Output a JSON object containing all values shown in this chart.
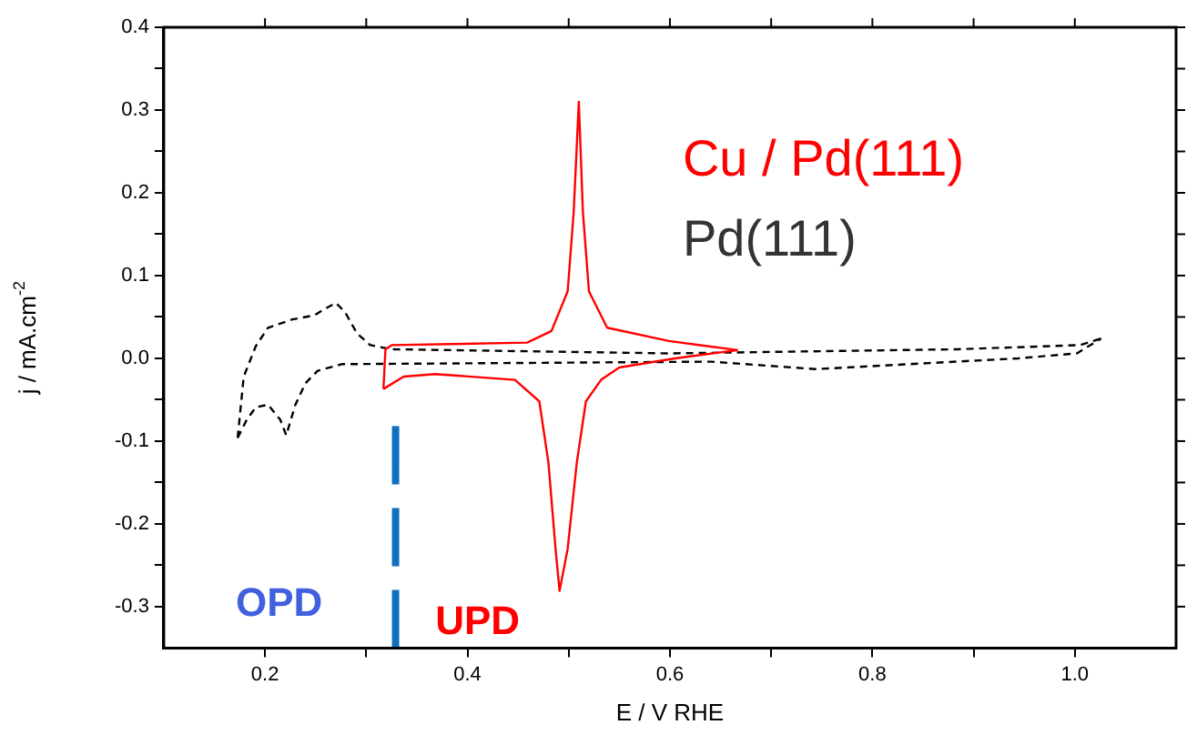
{
  "chart_data": {
    "type": "line",
    "xlabel": "E / V RHE",
    "ylabel": "j / mA.cm$^{-2}$",
    "xlim": [
      0.1,
      1.1
    ],
    "ylim": [
      -0.35,
      0.4
    ],
    "xticks": [
      {
        "value": 0.2,
        "label": "0.2"
      },
      {
        "value": 0.3,
        "label": null
      },
      {
        "value": 0.4,
        "label": "0.4"
      },
      {
        "value": 0.5,
        "label": null
      },
      {
        "value": 0.6,
        "label": "0.6"
      },
      {
        "value": 0.7,
        "label": null
      },
      {
        "value": 0.8,
        "label": "0.8"
      },
      {
        "value": 0.9,
        "label": null
      },
      {
        "value": 1.0,
        "label": "1.0"
      }
    ],
    "yticks": [
      {
        "value": -0.3,
        "label": "-0.3"
      },
      {
        "value": -0.25,
        "label": null
      },
      {
        "value": -0.2,
        "label": "-0.2"
      },
      {
        "value": -0.15,
        "label": null
      },
      {
        "value": -0.1,
        "label": "-0.1"
      },
      {
        "value": -0.05,
        "label": null
      },
      {
        "value": 0.0,
        "label": "0.0"
      },
      {
        "value": 0.05,
        "label": null
      },
      {
        "value": 0.1,
        "label": "0.1"
      },
      {
        "value": 0.15,
        "label": null
      },
      {
        "value": 0.2,
        "label": "0.2"
      },
      {
        "value": 0.25,
        "label": null
      },
      {
        "value": 0.3,
        "label": "0.3"
      },
      {
        "value": 0.35,
        "label": null
      },
      {
        "value": 0.4,
        "label": "0.4"
      }
    ],
    "grid": false,
    "legend": "top right",
    "marker": "none",
    "series": [
      {
        "name": "Cu / Pd(111)",
        "color": "#ff0000",
        "line_style": "solid",
        "x": [
          0.317,
          0.319,
          0.325,
          0.459,
          0.483,
          0.499,
          0.505,
          0.51,
          0.514,
          0.52,
          0.538,
          0.599,
          0.667
        ],
        "values": [
          -0.037,
          0.011,
          0.016,
          0.019,
          0.033,
          0.081,
          0.178,
          0.31,
          0.178,
          0.081,
          0.037,
          0.021,
          0.01
        ]
      },
      {
        "color": "#ff0000",
        "line_style": "solid",
        "x": [
          0.317,
          0.337,
          0.368,
          0.447,
          0.471,
          0.48,
          0.487,
          0.491,
          0.499,
          0.508,
          0.517,
          0.532,
          0.55,
          0.605,
          0.667
        ],
        "values": [
          -0.037,
          -0.022,
          -0.019,
          -0.026,
          -0.052,
          -0.126,
          -0.23,
          -0.281,
          -0.23,
          -0.126,
          -0.052,
          -0.026,
          -0.011,
          0.0,
          0.01
        ]
      },
      {
        "name": "Pd(111)",
        "color": "#000000",
        "line_style": "dashed",
        "x": [
          0.173,
          0.179,
          0.191,
          0.203,
          0.227,
          0.249,
          0.258,
          0.27,
          0.279,
          0.291,
          0.304,
          0.325,
          0.6,
          0.884,
          1.005,
          1.026
        ],
        "values": [
          -0.096,
          -0.022,
          0.015,
          0.037,
          0.047,
          0.052,
          0.059,
          0.067,
          0.056,
          0.03,
          0.016,
          0.011,
          0.006,
          0.011,
          0.016,
          0.024
        ]
      },
      {
        "color": "#000000",
        "line_style": "dashed",
        "x": [
          0.173,
          0.182,
          0.191,
          0.203,
          0.215,
          0.221,
          0.23,
          0.24,
          0.252,
          0.276,
          0.398,
          0.641,
          0.744,
          0.944,
          1.002,
          1.026
        ],
        "values": [
          -0.096,
          -0.074,
          -0.059,
          -0.056,
          -0.074,
          -0.093,
          -0.056,
          -0.03,
          -0.015,
          -0.007,
          -0.006,
          -0.004,
          -0.013,
          0.0,
          0.006,
          0.024
        ]
      },
      {
        "color": "#1070c0",
        "line_style": "dashed",
        "x": [
          0.329,
          0.329
        ],
        "values": [
          -0.35,
          -0.075
        ]
      }
    ],
    "annotations": [
      "OPD",
      "UPD"
    ]
  }
}
